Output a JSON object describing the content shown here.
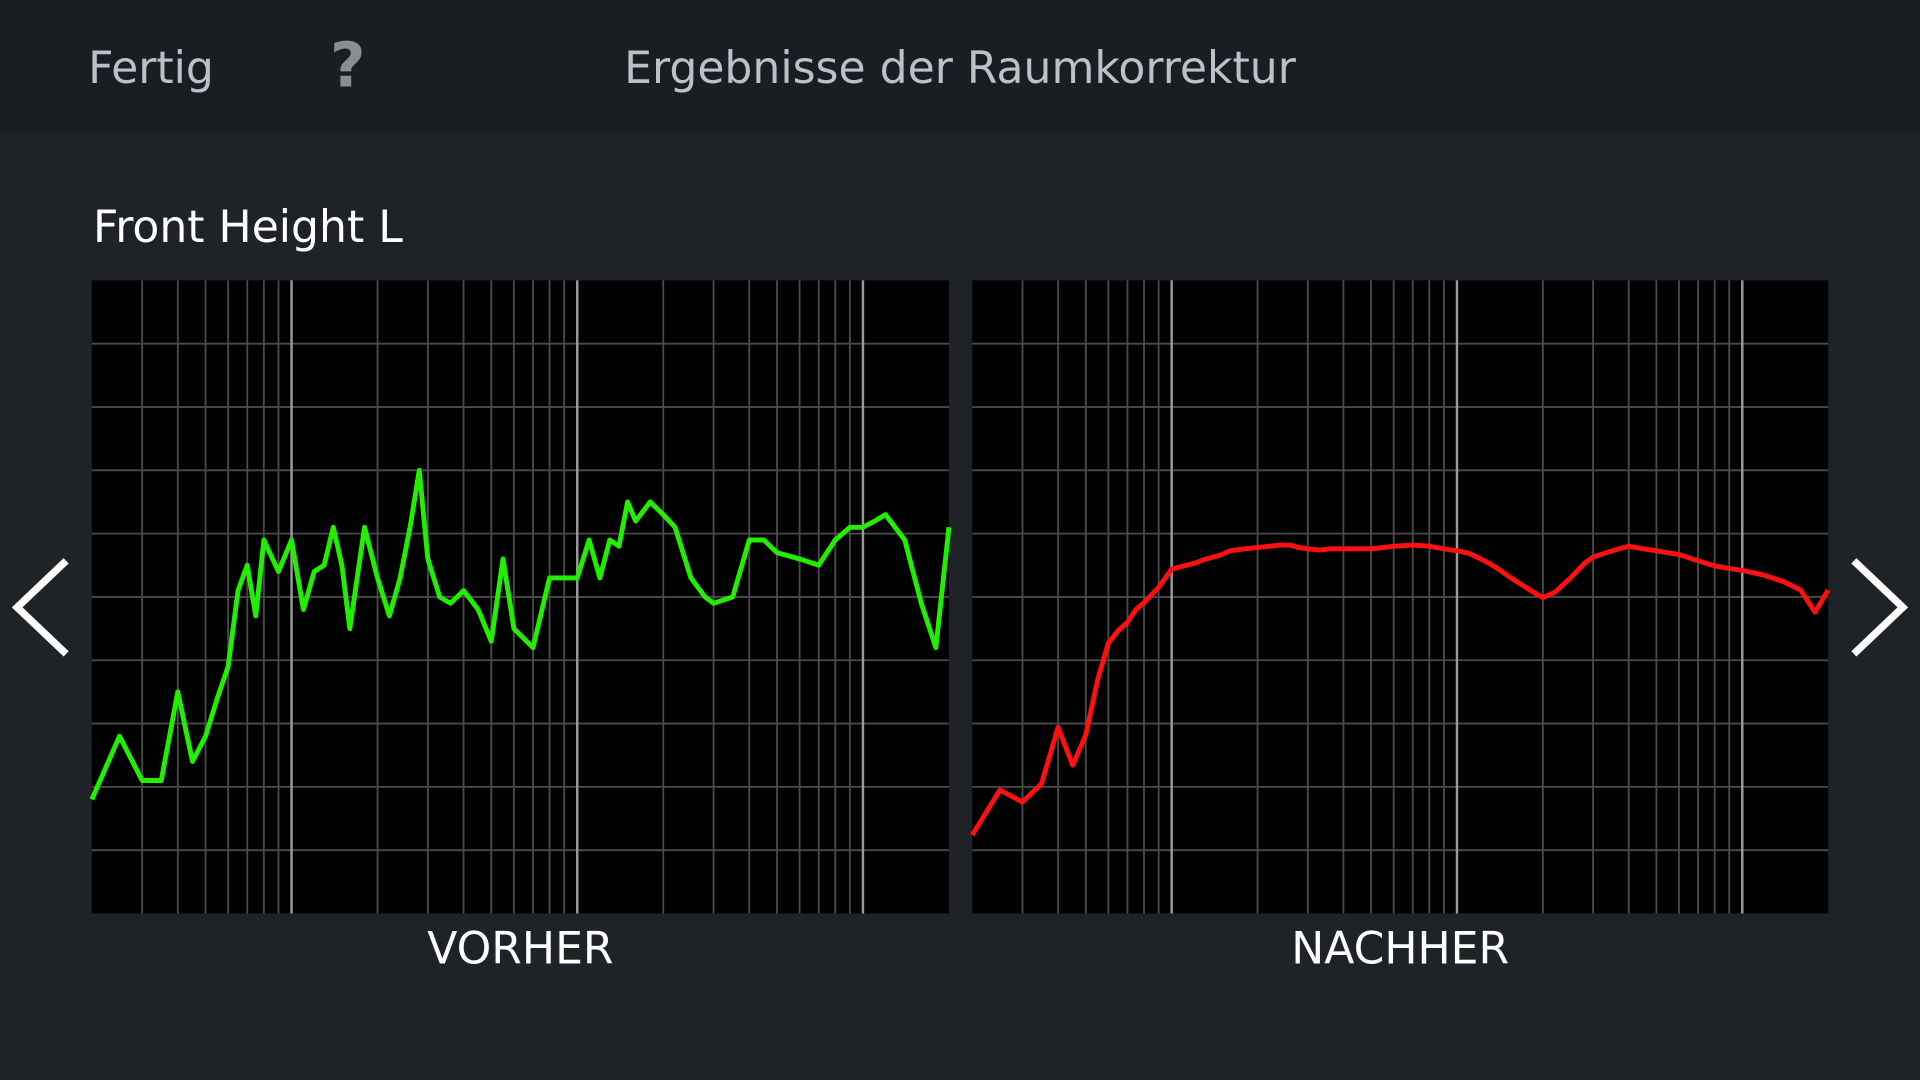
{
  "header": {
    "done": "Fertig",
    "help": "?",
    "title": "Ergebnisse der Raumkorrektur"
  },
  "speaker": "Front Height L",
  "chart_data": [
    {
      "type": "line",
      "title": "VORHER",
      "log_x": true,
      "grid": true,
      "xlim": [
        20,
        20000
      ],
      "ylim": [
        0,
        10
      ],
      "x": [
        20,
        25,
        30,
        35,
        40,
        45,
        50,
        55,
        60,
        65,
        70,
        75,
        80,
        90,
        100,
        110,
        120,
        130,
        140,
        150,
        160,
        180,
        200,
        220,
        240,
        260,
        280,
        300,
        330,
        360,
        400,
        450,
        500,
        550,
        600,
        700,
        800,
        900,
        1000,
        1100,
        1200,
        1300,
        1400,
        1500,
        1600,
        1800,
        2000,
        2200,
        2500,
        2800,
        3000,
        3500,
        4000,
        4500,
        5000,
        6000,
        7000,
        8000,
        9000,
        10000,
        11000,
        12000,
        14000,
        16000,
        18000,
        20000
      ],
      "series": [
        {
          "color": "#22ee00",
          "values": [
            1.8,
            2.8,
            2.1,
            2.1,
            3.5,
            2.4,
            2.8,
            3.4,
            3.9,
            5.1,
            5.5,
            4.7,
            5.9,
            5.4,
            5.9,
            4.8,
            5.4,
            5.5,
            6.1,
            5.5,
            4.5,
            6.1,
            5.3,
            4.7,
            5.3,
            6.1,
            7.0,
            5.6,
            5.0,
            4.9,
            5.1,
            4.8,
            4.3,
            5.6,
            4.5,
            4.2,
            5.3,
            5.3,
            5.3,
            5.9,
            5.3,
            5.9,
            5.8,
            6.5,
            6.2,
            6.5,
            6.3,
            6.1,
            5.3,
            5.0,
            4.9,
            5.0,
            5.9,
            5.9,
            5.7,
            5.6,
            5.5,
            5.9,
            6.1,
            6.1,
            6.2,
            6.3,
            5.9,
            4.9,
            4.2,
            6.1
          ]
        }
      ]
    },
    {
      "type": "line",
      "title": "NACHHER",
      "log_x": true,
      "grid": true,
      "xlim": [
        20,
        20000
      ],
      "ylim": [
        0,
        10
      ],
      "x": [
        20,
        25,
        30,
        35,
        40,
        45,
        50,
        55,
        60,
        65,
        70,
        75,
        80,
        90,
        100,
        110,
        120,
        130,
        140,
        150,
        160,
        180,
        200,
        220,
        240,
        260,
        280,
        300,
        330,
        360,
        400,
        450,
        500,
        550,
        600,
        700,
        800,
        900,
        1000,
        1100,
        1200,
        1300,
        1400,
        1500,
        1600,
        1800,
        2000,
        2200,
        2500,
        2800,
        3000,
        3500,
        4000,
        4500,
        5000,
        6000,
        7000,
        8000,
        9000,
        10000,
        11000,
        12000,
        14000,
        16000,
        18000,
        20000
      ],
      "series": [
        {
          "color": "#ff1010",
          "values": [
            1.24,
            1.95,
            1.76,
            2.05,
            2.94,
            2.34,
            2.82,
            3.69,
            4.27,
            4.47,
            4.6,
            4.8,
            4.91,
            5.15,
            5.44,
            5.49,
            5.53,
            5.59,
            5.63,
            5.67,
            5.73,
            5.76,
            5.78,
            5.8,
            5.82,
            5.82,
            5.78,
            5.76,
            5.74,
            5.76,
            5.76,
            5.76,
            5.76,
            5.78,
            5.8,
            5.82,
            5.8,
            5.76,
            5.73,
            5.69,
            5.61,
            5.53,
            5.44,
            5.34,
            5.26,
            5.11,
            4.99,
            5.07,
            5.3,
            5.53,
            5.63,
            5.73,
            5.8,
            5.76,
            5.73,
            5.67,
            5.57,
            5.49,
            5.45,
            5.42,
            5.38,
            5.34,
            5.24,
            5.11,
            4.76,
            5.11
          ]
        }
      ]
    }
  ]
}
